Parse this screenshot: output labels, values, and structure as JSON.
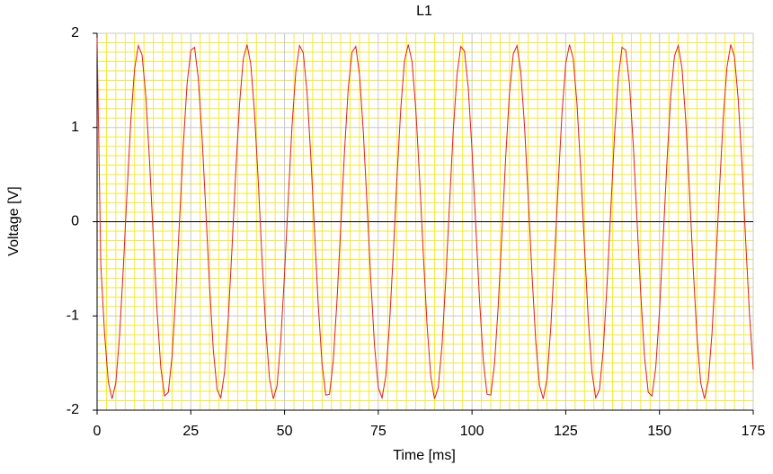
{
  "chart_data": {
    "type": "line",
    "title": "L1",
    "x_label": "Time [ms]",
    "y_label": "Voltage [V]",
    "x": [
      0,
      1,
      2,
      3,
      4,
      5,
      6,
      7,
      8,
      9,
      10,
      11,
      12,
      13,
      14,
      15,
      16,
      17,
      18,
      19,
      20,
      21,
      22,
      23,
      24,
      25,
      26,
      27,
      28,
      29,
      30,
      31,
      32,
      33,
      34,
      35,
      36,
      37,
      38,
      39,
      40,
      41,
      42,
      43,
      44,
      45,
      46,
      47,
      48,
      49,
      50,
      51,
      52,
      53,
      54,
      55,
      56,
      57,
      58,
      59,
      60,
      61,
      62,
      63,
      64,
      65,
      66,
      67,
      68,
      69,
      70,
      71,
      72,
      73,
      74,
      75,
      76,
      77,
      78,
      79,
      80,
      81,
      82,
      83,
      84,
      85,
      86,
      87,
      88,
      89,
      90,
      91,
      92,
      93,
      94,
      95,
      96,
      97,
      98,
      99,
      100,
      101,
      102,
      103,
      104,
      105,
      106,
      107,
      108,
      109,
      110,
      111,
      112,
      113,
      114,
      115,
      116,
      117,
      118,
      119,
      120,
      121,
      122,
      123,
      124,
      125,
      126,
      127,
      128,
      129,
      130,
      131,
      132,
      133,
      134,
      135,
      136,
      137,
      138,
      139,
      140,
      141,
      142,
      143,
      144,
      145,
      146,
      147,
      148,
      149,
      150,
      151,
      152,
      153,
      154,
      155,
      156,
      157,
      158,
      159,
      160,
      161,
      162,
      163,
      164,
      165,
      166,
      167,
      168,
      169,
      170,
      171,
      172,
      173,
      174,
      175
    ],
    "series": [
      {
        "name": "L1",
        "color": "#e0201c",
        "values": [
          1.95,
          -0.46,
          -1.19,
          -1.7,
          -1.88,
          -1.71,
          -1.21,
          -0.49,
          0.32,
          1.07,
          1.62,
          1.87,
          1.77,
          1.33,
          0.64,
          -0.17,
          -0.95,
          -1.55,
          -1.85,
          -1.81,
          -1.43,
          -0.77,
          0.02,
          0.81,
          1.46,
          1.82,
          1.85,
          1.52,
          0.9,
          0.12,
          -0.68,
          -1.36,
          -1.78,
          -1.87,
          -1.6,
          -1.02,
          -0.27,
          0.54,
          1.25,
          1.73,
          1.88,
          1.67,
          1.15,
          0.42,
          -0.4,
          -1.14,
          -1.67,
          -1.88,
          -1.74,
          -1.26,
          -0.55,
          0.25,
          1.02,
          1.59,
          1.87,
          1.79,
          1.37,
          0.7,
          -0.11,
          -0.89,
          -1.51,
          -1.84,
          -1.83,
          -1.47,
          -0.83,
          -0.04,
          0.75,
          1.42,
          1.8,
          1.86,
          1.56,
          0.96,
          0.19,
          -0.62,
          -1.32,
          -1.76,
          -1.87,
          -1.64,
          -1.08,
          -0.34,
          0.48,
          1.2,
          1.71,
          1.88,
          1.7,
          1.2,
          0.48,
          -0.34,
          -1.09,
          -1.64,
          -1.88,
          -1.76,
          -1.31,
          -0.62,
          0.19,
          0.97,
          1.56,
          1.86,
          1.81,
          1.42,
          0.76,
          -0.04,
          -0.83,
          -1.47,
          -1.83,
          -1.84,
          -1.51,
          -0.89,
          -0.11,
          0.7,
          1.37,
          1.78,
          1.87,
          1.59,
          1.02,
          0.25,
          -0.56,
          -1.27,
          -1.74,
          -1.88,
          -1.67,
          -1.13,
          -0.4,
          0.41,
          1.15,
          1.68,
          1.88,
          1.73,
          1.25,
          0.54,
          -0.27,
          -1.03,
          -1.6,
          -1.87,
          -1.78,
          -1.36,
          -0.68,
          0.12,
          0.91,
          1.52,
          1.85,
          1.82,
          1.46,
          0.82,
          0.02,
          -0.77,
          -1.43,
          -1.81,
          -1.85,
          -1.55,
          -0.95,
          -0.17,
          0.64,
          1.33,
          1.76,
          1.87,
          1.63,
          1.08,
          0.32,
          -0.5,
          -1.22,
          -1.71,
          -1.88,
          -1.69,
          -1.19,
          -0.46,
          0.35,
          1.1,
          1.64,
          1.88,
          1.75,
          1.3,
          0.61,
          -0.21,
          -0.98,
          -1.57
        ]
      }
    ],
    "xlim": [
      0,
      175
    ],
    "xticks": [
      0,
      25,
      50,
      75,
      100,
      125,
      150,
      175
    ],
    "ylim": [
      -2,
      2
    ],
    "yticks": [
      -2,
      -1,
      0,
      1,
      2
    ],
    "grid": true
  }
}
